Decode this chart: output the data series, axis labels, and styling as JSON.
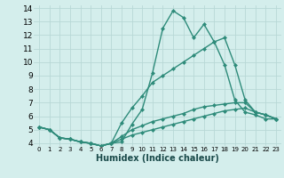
{
  "xlabel": "Humidex (Indice chaleur)",
  "x": [
    0,
    1,
    2,
    3,
    4,
    5,
    6,
    7,
    8,
    9,
    10,
    11,
    12,
    13,
    14,
    15,
    16,
    17,
    18,
    19,
    20,
    21,
    22,
    23
  ],
  "lines": [
    [
      5.2,
      5.0,
      4.4,
      4.3,
      4.1,
      4.0,
      3.8,
      4.0,
      4.1,
      5.4,
      6.5,
      9.2,
      12.5,
      13.8,
      13.3,
      11.8,
      12.8,
      11.5,
      9.8,
      7.2,
      6.3,
      6.1,
      5.8,
      5.8
    ],
    [
      5.2,
      5.0,
      4.4,
      4.3,
      4.1,
      4.0,
      3.8,
      4.0,
      5.5,
      6.6,
      7.5,
      8.5,
      9.0,
      9.5,
      10.0,
      10.5,
      11.0,
      11.5,
      11.8,
      9.8,
      7.2,
      6.3,
      6.1,
      5.8
    ],
    [
      5.2,
      5.0,
      4.4,
      4.3,
      4.1,
      4.0,
      3.8,
      4.0,
      4.5,
      5.0,
      5.3,
      5.6,
      5.8,
      6.0,
      6.2,
      6.5,
      6.7,
      6.8,
      6.9,
      7.0,
      7.0,
      6.3,
      6.1,
      5.8
    ],
    [
      5.2,
      5.0,
      4.4,
      4.3,
      4.1,
      4.0,
      3.8,
      4.0,
      4.3,
      4.6,
      4.8,
      5.0,
      5.2,
      5.4,
      5.6,
      5.8,
      6.0,
      6.2,
      6.4,
      6.5,
      6.6,
      6.3,
      6.1,
      5.8
    ]
  ],
  "line_color": "#2e8b7a",
  "bg_color": "#d4eeec",
  "grid_color": "#b8d8d6",
  "ylim": [
    3.8,
    14.2
  ],
  "yticks": [
    4,
    5,
    6,
    7,
    8,
    9,
    10,
    11,
    12,
    13,
    14
  ],
  "xlim": [
    -0.5,
    23.5
  ],
  "xticks": [
    0,
    1,
    2,
    3,
    4,
    5,
    6,
    7,
    8,
    9,
    10,
    11,
    12,
    13,
    14,
    15,
    16,
    17,
    18,
    19,
    20,
    21,
    22,
    23
  ],
  "marker": "D",
  "marker_size": 2.0,
  "line_width": 1.0,
  "xlabel_fontsize": 7,
  "tick_fontsize": 6.5
}
